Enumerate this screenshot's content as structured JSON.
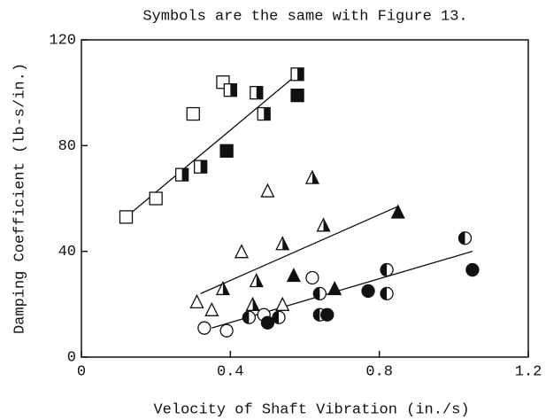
{
  "chart_data": {
    "type": "scatter",
    "title": "Symbols are the same with Figure 13.",
    "xlabel": "Velocity of Shaft Vibration (in./s)",
    "ylabel": "Damping Coefficient (lb-s/in.)",
    "xlim": [
      0,
      1.2
    ],
    "ylim": [
      0,
      120
    ],
    "xticks": [
      0,
      0.4,
      0.8,
      1.2
    ],
    "yticks": [
      0,
      40,
      80,
      120
    ],
    "color": "#111111",
    "series": [
      {
        "marker": "square",
        "fill": "open",
        "x": [
          0.12,
          0.2,
          0.3,
          0.38
        ],
        "values": [
          53,
          60,
          92,
          104
        ]
      },
      {
        "marker": "square",
        "fill": "half",
        "x": [
          0.27,
          0.32,
          0.4,
          0.47,
          0.49,
          0.58
        ],
        "values": [
          69,
          72,
          101,
          100,
          92,
          107
        ]
      },
      {
        "marker": "square",
        "fill": "full",
        "x": [
          0.39,
          0.58
        ],
        "values": [
          78,
          99
        ]
      },
      {
        "marker": "triangle",
        "fill": "open",
        "x": [
          0.31,
          0.35,
          0.43,
          0.5,
          0.54
        ],
        "values": [
          21,
          18,
          40,
          63,
          20
        ]
      },
      {
        "marker": "triangle",
        "fill": "half",
        "x": [
          0.38,
          0.46,
          0.47,
          0.54,
          0.62,
          0.65
        ],
        "values": [
          26,
          20,
          29,
          43,
          68,
          50
        ]
      },
      {
        "marker": "triangle",
        "fill": "full",
        "x": [
          0.57,
          0.68,
          0.85
        ],
        "values": [
          31,
          26,
          55
        ]
      },
      {
        "marker": "circle",
        "fill": "open",
        "x": [
          0.33,
          0.39,
          0.49,
          0.62
        ],
        "values": [
          11,
          10,
          16,
          30
        ]
      },
      {
        "marker": "circle",
        "fill": "half",
        "x": [
          0.45,
          0.53,
          0.64,
          0.64,
          0.82,
          0.82,
          1.03
        ],
        "values": [
          15,
          15,
          24,
          16,
          33,
          24,
          45
        ]
      },
      {
        "marker": "circle",
        "fill": "full",
        "x": [
          0.5,
          0.66,
          0.77,
          1.05
        ],
        "values": [
          13,
          16,
          25,
          33
        ]
      }
    ],
    "fit_lines": [
      {
        "x": [
          0.12,
          0.58
        ],
        "y": [
          53,
          107
        ]
      },
      {
        "x": [
          0.32,
          0.85
        ],
        "y": [
          24,
          57
        ]
      },
      {
        "x": [
          0.35,
          1.05
        ],
        "y": [
          11,
          40
        ]
      }
    ]
  }
}
